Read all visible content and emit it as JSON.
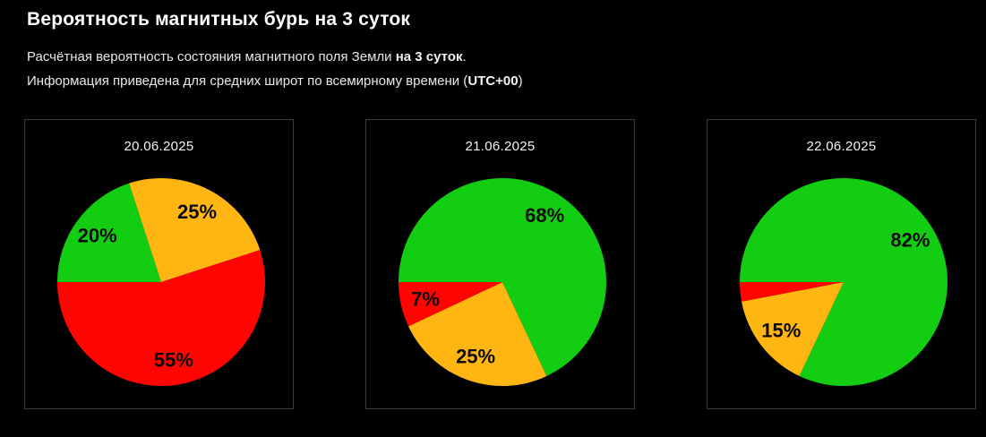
{
  "page": {
    "title": "Вероятность магнитных бурь на 3 суток",
    "subtitle": {
      "line1": {
        "text": "Расчётная вероятность состояния магнитного поля Земли ",
        "bold": "на 3 суток",
        "suffix": "."
      },
      "line2": {
        "text": "Информация приведена для средних широт по всемирному времени (",
        "bold": "UTC+00",
        "suffix": ")"
      }
    }
  },
  "colors": {
    "green": "#12cd12",
    "yellow": "#ffb612",
    "red": "#ff0400",
    "label_text": "#0a0a0a",
    "card_border": "#3a3a3a",
    "background": "#000000"
  },
  "chart_data": [
    {
      "type": "pie",
      "title": "20.06.2025",
      "start_angle_deg": 270,
      "direction": "clockwise",
      "label_radius": 0.76,
      "slices": [
        {
          "color": "green",
          "value": 20,
          "label": "20%"
        },
        {
          "color": "yellow",
          "value": 25,
          "label": "25%"
        },
        {
          "color": "red",
          "value": 55,
          "label": "55%"
        }
      ]
    },
    {
      "type": "pie",
      "title": "21.06.2025",
      "start_angle_deg": 270,
      "direction": "clockwise",
      "label_radius": 0.76,
      "slices": [
        {
          "color": "green",
          "value": 68,
          "label": "68%"
        },
        {
          "color": "yellow",
          "value": 25,
          "label": "25%"
        },
        {
          "color": "red",
          "value": 7,
          "label": "7%"
        }
      ]
    },
    {
      "type": "pie",
      "title": "22.06.2025",
      "start_angle_deg": 270,
      "direction": "clockwise",
      "label_radius": 0.76,
      "slices": [
        {
          "color": "green",
          "value": 82,
          "label": "82%"
        },
        {
          "color": "yellow",
          "value": 15,
          "label": "15%"
        },
        {
          "color": "red",
          "value": 3,
          "label": ""
        }
      ]
    }
  ]
}
